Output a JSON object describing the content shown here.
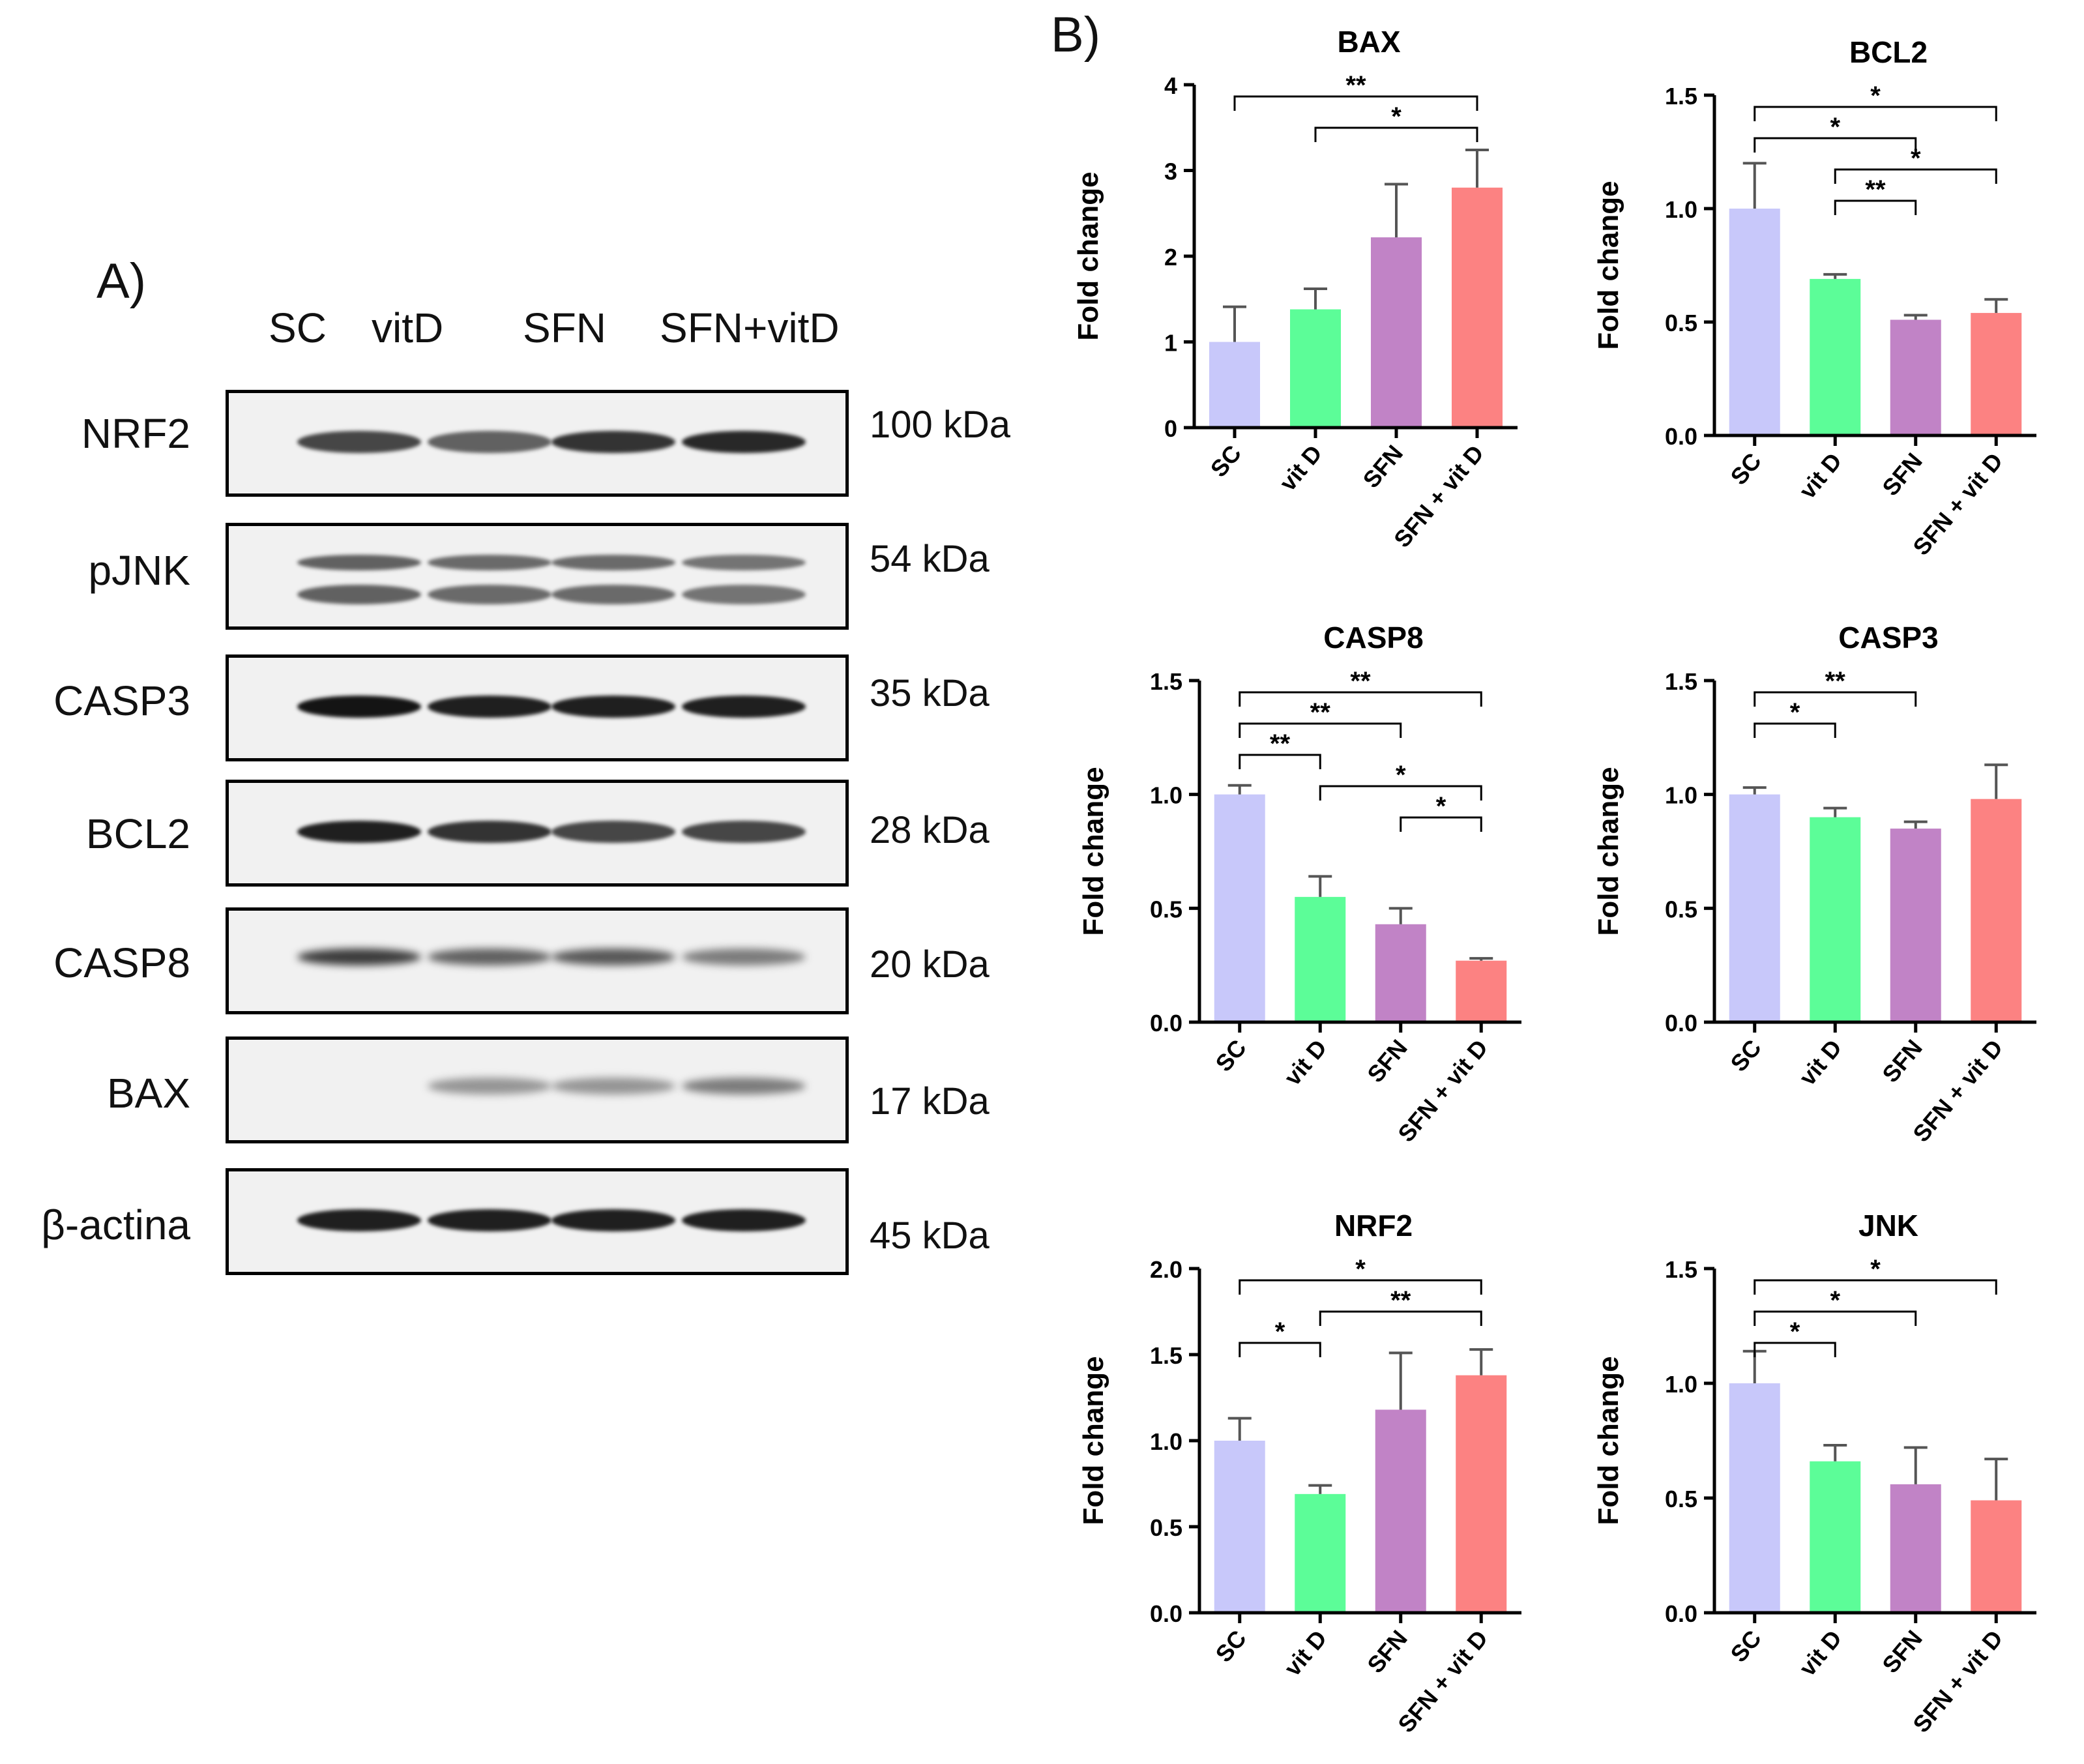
{
  "panel_a": {
    "label": "A)",
    "lanes": [
      "SC",
      "vitD",
      "SFN",
      "SFN+vitD"
    ],
    "blots": [
      {
        "protein": "NRF2",
        "kda": "100 kDa",
        "intensity": [
          0.75,
          0.6,
          0.85,
          0.9
        ],
        "double": false,
        "fuzzy": false
      },
      {
        "protein": "pJNK",
        "kda": "54 kDa",
        "intensity": [
          0.6,
          0.55,
          0.55,
          0.5
        ],
        "double": true,
        "fuzzy": false
      },
      {
        "protein": "CASP3",
        "kda": "35 kDa",
        "intensity": [
          1.0,
          0.95,
          0.95,
          0.95
        ],
        "double": false,
        "fuzzy": false
      },
      {
        "protein": "BCL2",
        "kda": "28 kDa",
        "intensity": [
          0.95,
          0.85,
          0.75,
          0.75
        ],
        "double": false,
        "fuzzy": false
      },
      {
        "protein": "CASP8",
        "kda": "20 kDa",
        "intensity": [
          0.8,
          0.6,
          0.65,
          0.45
        ],
        "double": false,
        "fuzzy": true
      },
      {
        "protein": "BAX",
        "kda": "17 kDa",
        "intensity": [
          0.0,
          0.3,
          0.3,
          0.45
        ],
        "double": false,
        "fuzzy": true
      },
      {
        "protein": "β-actina",
        "kda": "45 kDa",
        "intensity": [
          0.95,
          0.95,
          0.95,
          0.95
        ],
        "double": false,
        "fuzzy": false
      }
    ]
  },
  "panel_b": {
    "label": "B)"
  },
  "colors": {
    "SC": "#c8c8fa",
    "vit D": "#5cfd98",
    "SFN": "#c183c6",
    "SFN + vit D": "#fc8282",
    "axis": "#000000"
  },
  "chart_data": [
    {
      "type": "bar",
      "title": "BAX",
      "ylabel": "Fold change",
      "categories": [
        "SC",
        "vit D",
        "SFN",
        "SFN + vit D"
      ],
      "values": [
        1.0,
        1.38,
        2.22,
        2.8
      ],
      "errors": [
        0.41,
        0.24,
        0.62,
        0.44
      ],
      "ylim": [
        0,
        4
      ],
      "yticks": [
        "0",
        "1",
        "2",
        "3",
        "4"
      ],
      "ytick_values": [
        0,
        1,
        2,
        3,
        4
      ],
      "significance": [
        {
          "from": 0,
          "to": 3,
          "label": "**"
        },
        {
          "from": 1,
          "to": 3,
          "label": "*"
        }
      ]
    },
    {
      "type": "bar",
      "title": "BCL2",
      "ylabel": "Fold change",
      "categories": [
        "SC",
        "vit D",
        "SFN",
        "SFN + vit D"
      ],
      "values": [
        1.0,
        0.69,
        0.51,
        0.54
      ],
      "errors": [
        0.2,
        0.02,
        0.02,
        0.06
      ],
      "ylim": [
        0,
        1.5
      ],
      "yticks": [
        "0.0",
        "0.5",
        "1.0",
        "1.5"
      ],
      "ytick_values": [
        0,
        0.5,
        1.0,
        1.5
      ],
      "significance": [
        {
          "from": 0,
          "to": 3,
          "label": "*"
        },
        {
          "from": 0,
          "to": 2,
          "label": "*"
        },
        {
          "from": 1,
          "to": 3,
          "label": "*"
        },
        {
          "from": 1,
          "to": 2,
          "label": "**"
        }
      ]
    },
    {
      "type": "bar",
      "title": "CASP8",
      "ylabel": "Fold change",
      "categories": [
        "SC",
        "vit D",
        "SFN",
        "SFN + vit D"
      ],
      "values": [
        1.0,
        0.55,
        0.43,
        0.27
      ],
      "errors": [
        0.04,
        0.09,
        0.07,
        0.01
      ],
      "ylim": [
        0,
        1.5
      ],
      "yticks": [
        "0.0",
        "0.5",
        "1.0",
        "1.5"
      ],
      "ytick_values": [
        0,
        0.5,
        1.0,
        1.5
      ],
      "significance": [
        {
          "from": 0,
          "to": 3,
          "label": "**"
        },
        {
          "from": 0,
          "to": 2,
          "label": "**"
        },
        {
          "from": 0,
          "to": 1,
          "label": "**"
        },
        {
          "from": 1,
          "to": 3,
          "label": "*"
        },
        {
          "from": 2,
          "to": 3,
          "label": "*"
        }
      ]
    },
    {
      "type": "bar",
      "title": "CASP3",
      "ylabel": "Fold change",
      "categories": [
        "SC",
        "vit D",
        "SFN",
        "SFN + vit D"
      ],
      "values": [
        1.0,
        0.9,
        0.85,
        0.98
      ],
      "errors": [
        0.03,
        0.04,
        0.03,
        0.15
      ],
      "ylim": [
        0,
        1.5
      ],
      "yticks": [
        "0.0",
        "0.5",
        "1.0",
        "1.5"
      ],
      "ytick_values": [
        0,
        0.5,
        1.0,
        1.5
      ],
      "significance": [
        {
          "from": 0,
          "to": 2,
          "label": "**"
        },
        {
          "from": 0,
          "to": 1,
          "label": "*"
        }
      ]
    },
    {
      "type": "bar",
      "title": "NRF2",
      "ylabel": "Fold change",
      "categories": [
        "SC",
        "vit D",
        "SFN",
        "SFN + vit D"
      ],
      "values": [
        1.0,
        0.69,
        1.18,
        1.38
      ],
      "errors": [
        0.13,
        0.05,
        0.33,
        0.15
      ],
      "ylim": [
        0,
        2.0
      ],
      "yticks": [
        "0.0",
        "0.5",
        "1.0",
        "1.5",
        "2.0"
      ],
      "ytick_values": [
        0,
        0.5,
        1.0,
        1.5,
        2.0
      ],
      "significance": [
        {
          "from": 0,
          "to": 3,
          "label": "*"
        },
        {
          "from": 1,
          "to": 3,
          "label": "**"
        },
        {
          "from": 0,
          "to": 1,
          "label": "*"
        }
      ]
    },
    {
      "type": "bar",
      "title": "JNK",
      "ylabel": "Fold change",
      "categories": [
        "SC",
        "vit D",
        "SFN",
        "SFN + vit D"
      ],
      "values": [
        1.0,
        0.66,
        0.56,
        0.49
      ],
      "errors": [
        0.14,
        0.07,
        0.16,
        0.18
      ],
      "ylim": [
        0,
        1.5
      ],
      "yticks": [
        "0.0",
        "0.5",
        "1.0",
        "1.5"
      ],
      "ytick_values": [
        0,
        0.5,
        1.0,
        1.5
      ],
      "significance": [
        {
          "from": 0,
          "to": 3,
          "label": "*"
        },
        {
          "from": 0,
          "to": 2,
          "label": "*"
        },
        {
          "from": 0,
          "to": 1,
          "label": "*"
        }
      ]
    }
  ]
}
